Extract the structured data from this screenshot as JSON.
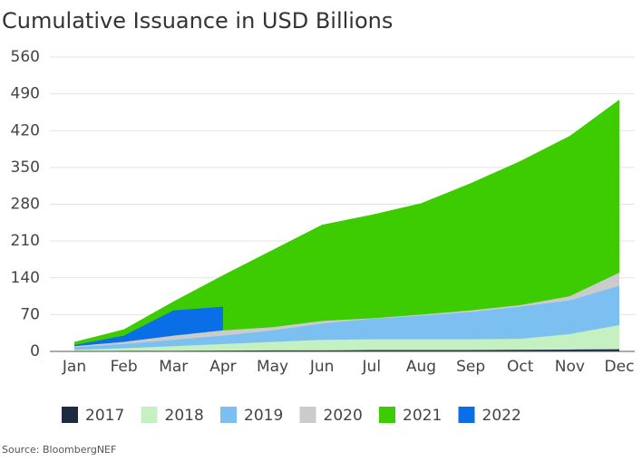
{
  "chart_data": {
    "type": "area",
    "title": "Cumulative Issuance in USD Billions",
    "source": "Source: BloombergNEF",
    "categories": [
      "Jan",
      "Feb",
      "Mar",
      "Apr",
      "May",
      "Jun",
      "Jul",
      "Aug",
      "Sep",
      "Oct",
      "Nov",
      "Dec"
    ],
    "series": [
      {
        "name": "2017",
        "color": "#1c2b3f",
        "values": [
          0.5,
          1,
          1,
          1.5,
          2,
          2,
          2.5,
          2.5,
          2.5,
          3,
          3.5,
          4
        ]
      },
      {
        "name": "2018",
        "color": "#c5f0c2",
        "values": [
          3,
          6,
          10,
          14,
          18,
          22,
          23,
          23,
          23,
          24,
          33,
          50
        ]
      },
      {
        "name": "2019",
        "color": "#7cc0f2",
        "values": [
          8,
          14,
          22,
          30,
          40,
          53,
          62,
          68,
          75,
          85,
          97,
          125
        ]
      },
      {
        "name": "2020",
        "color": "#cbcbcb",
        "values": [
          10,
          18,
          30,
          40,
          46,
          58,
          63,
          70,
          78,
          88,
          105,
          150
        ]
      },
      {
        "name": "2021",
        "color": "#3ccc00",
        "values": [
          18,
          42,
          95,
          145,
          193,
          241,
          260,
          282,
          320,
          362,
          410,
          479
        ]
      },
      {
        "name": "2022",
        "color": "#0a6ee6",
        "values": [
          12,
          30,
          78,
          85,
          null,
          null,
          null,
          null,
          null,
          null,
          null,
          null
        ]
      }
    ],
    "ylim": [
      0,
      560
    ],
    "yticks": [
      0,
      70,
      140,
      210,
      280,
      350,
      420,
      490,
      560
    ],
    "grid": true
  }
}
